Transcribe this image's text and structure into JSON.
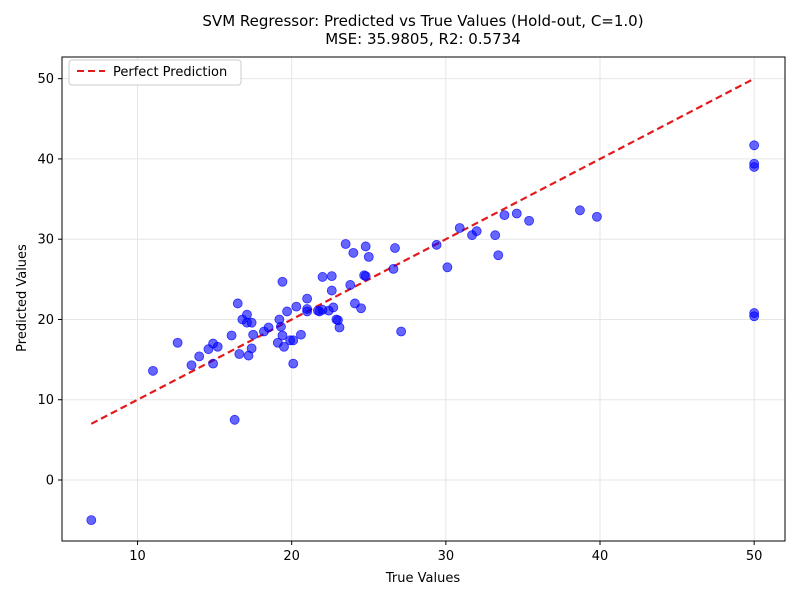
{
  "chart_data": {
    "type": "scatter",
    "title": "SVM Regressor: Predicted vs True Values (Hold-out, C=1.0)",
    "subtitle": "MSE: 35.9805, R2: 0.5734",
    "xlabel": "True Values",
    "ylabel": "Predicted Values",
    "xlim": [
      5.1,
      52.0
    ],
    "ylim": [
      -7.6,
      52.7
    ],
    "xticks": [
      10,
      20,
      30,
      40,
      50
    ],
    "yticks": [
      0,
      10,
      20,
      30,
      40,
      50
    ],
    "grid": true,
    "legend_position": "top-left",
    "colors": {
      "points": "#0000ff",
      "line": "#e31a1c"
    },
    "series": [
      {
        "name": "",
        "kind": "scatter",
        "points": [
          [
            7.0,
            -5.0
          ],
          [
            11.0,
            13.6
          ],
          [
            12.6,
            17.1
          ],
          [
            13.5,
            14.3
          ],
          [
            14.0,
            15.4
          ],
          [
            14.6,
            16.3
          ],
          [
            14.9,
            17.0
          ],
          [
            14.9,
            14.5
          ],
          [
            15.2,
            16.6
          ],
          [
            16.1,
            18.0
          ],
          [
            16.3,
            7.5
          ],
          [
            16.5,
            22.0
          ],
          [
            16.6,
            15.7
          ],
          [
            16.8,
            20.0
          ],
          [
            17.1,
            20.6
          ],
          [
            17.1,
            19.6
          ],
          [
            17.2,
            15.5
          ],
          [
            17.4,
            16.4
          ],
          [
            17.4,
            19.6
          ],
          [
            17.5,
            18.1
          ],
          [
            18.2,
            18.5
          ],
          [
            18.5,
            19.0
          ],
          [
            19.1,
            17.1
          ],
          [
            19.2,
            20.0
          ],
          [
            19.3,
            19.1
          ],
          [
            19.4,
            18.0
          ],
          [
            19.4,
            24.7
          ],
          [
            19.5,
            16.6
          ],
          [
            19.7,
            21.0
          ],
          [
            19.9,
            17.4
          ],
          [
            20.1,
            17.4
          ],
          [
            20.1,
            14.5
          ],
          [
            20.3,
            21.6
          ],
          [
            20.6,
            18.1
          ],
          [
            21.0,
            21.3
          ],
          [
            21.0,
            22.6
          ],
          [
            21.0,
            21.0
          ],
          [
            21.7,
            21.1
          ],
          [
            21.8,
            21.0
          ],
          [
            22.0,
            25.3
          ],
          [
            22.0,
            21.2
          ],
          [
            22.4,
            21.1
          ],
          [
            22.6,
            25.4
          ],
          [
            22.6,
            23.6
          ],
          [
            22.7,
            21.5
          ],
          [
            22.9,
            20.0
          ],
          [
            23.0,
            19.9
          ],
          [
            23.1,
            19.0
          ],
          [
            23.5,
            29.4
          ],
          [
            23.8,
            24.3
          ],
          [
            24.0,
            28.3
          ],
          [
            24.1,
            22.0
          ],
          [
            24.5,
            21.4
          ],
          [
            24.7,
            25.5
          ],
          [
            24.8,
            29.1
          ],
          [
            24.8,
            25.4
          ],
          [
            25.0,
            27.8
          ],
          [
            26.6,
            26.3
          ],
          [
            26.7,
            28.9
          ],
          [
            27.1,
            18.5
          ],
          [
            29.4,
            29.3
          ],
          [
            30.1,
            26.5
          ],
          [
            30.9,
            31.4
          ],
          [
            31.7,
            30.5
          ],
          [
            32.0,
            31.0
          ],
          [
            33.2,
            30.5
          ],
          [
            33.4,
            28.0
          ],
          [
            33.8,
            33.0
          ],
          [
            34.6,
            33.2
          ],
          [
            35.4,
            32.3
          ],
          [
            38.7,
            33.6
          ],
          [
            39.8,
            32.8
          ],
          [
            50.0,
            41.7
          ],
          [
            50.0,
            39.4
          ],
          [
            50.0,
            39.0
          ],
          [
            50.0,
            20.8
          ],
          [
            50.0,
            20.4
          ]
        ]
      },
      {
        "name": "Perfect Prediction",
        "kind": "line",
        "dashed": true,
        "points": [
          [
            7.0,
            7.0
          ],
          [
            50.0,
            50.0
          ]
        ]
      }
    ]
  }
}
